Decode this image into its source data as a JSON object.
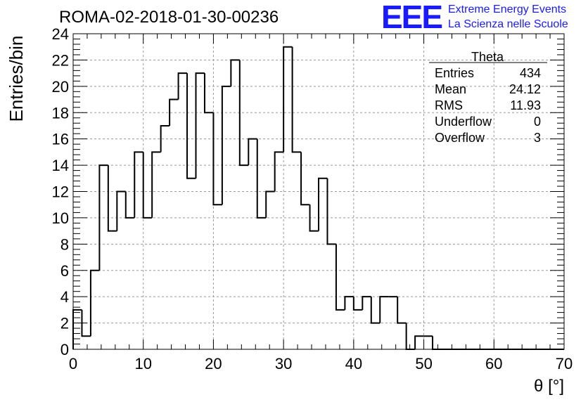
{
  "title": "ROMA-02-2018-01-30-00236",
  "logo": {
    "mark": "EEE",
    "line1": "Extreme Energy Events",
    "line2": "La Scienza nelle Scuole",
    "color": "#1a1aff"
  },
  "stats_box": {
    "title": "Theta",
    "rows": [
      {
        "label": "Entries",
        "value": "434"
      },
      {
        "label": "Mean",
        "value": "24.12"
      },
      {
        "label": "RMS",
        "value": "11.93"
      },
      {
        "label": "Underflow",
        "value": "0"
      },
      {
        "label": "Overflow",
        "value": "3"
      }
    ]
  },
  "chart_data": {
    "type": "bar",
    "subtype": "step-histogram",
    "xlabel": "θ [°]",
    "ylabel": "Entries/bin",
    "xlim": [
      0,
      70
    ],
    "ylim": [
      0,
      24
    ],
    "bin_width": 1.25,
    "x_ticks": [
      "0",
      "10",
      "20",
      "30",
      "40",
      "50",
      "60",
      "70"
    ],
    "y_ticks": [
      "0",
      "2",
      "4",
      "6",
      "8",
      "10",
      "12",
      "14",
      "16",
      "18",
      "20",
      "22",
      "24"
    ],
    "grid": true,
    "legend": "top-right",
    "bin_low_edges": [
      0,
      1.25,
      2.5,
      3.75,
      5,
      6.25,
      7.5,
      8.75,
      10,
      11.25,
      12.5,
      13.75,
      15,
      16.25,
      17.5,
      18.75,
      20,
      21.25,
      22.5,
      23.75,
      25,
      26.25,
      27.5,
      28.75,
      30,
      31.25,
      32.5,
      33.75,
      35,
      36.25,
      37.5,
      38.75,
      40,
      41.25,
      42.5,
      43.75,
      45,
      46.25,
      47.5,
      48.75,
      50,
      51.25,
      52.5,
      53.75,
      55,
      56.25,
      57.5,
      58.75,
      60,
      61.25,
      62.5,
      63.75,
      65,
      66.25,
      67.5,
      68.75
    ],
    "values": [
      3,
      1,
      6,
      14,
      9,
      12,
      10,
      15,
      10,
      15,
      17,
      19,
      21,
      13,
      21,
      18,
      11,
      20,
      22,
      14,
      16,
      10,
      12,
      15,
      23,
      15,
      11,
      9,
      13,
      8,
      3,
      4,
      3,
      4,
      2,
      4,
      4,
      2,
      0,
      1,
      1,
      0,
      0,
      0,
      0,
      0,
      0,
      0,
      0,
      0,
      0,
      0,
      0,
      0,
      0,
      0
    ],
    "line_color": "#000000",
    "title_color": "#000000"
  }
}
